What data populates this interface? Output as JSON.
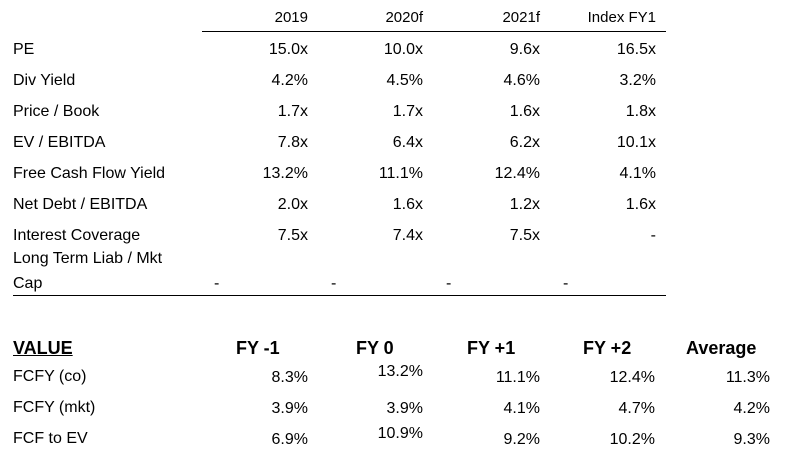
{
  "table1": {
    "headers": [
      "2019",
      "2020f",
      "2021f",
      "Index FY1"
    ],
    "rows": [
      {
        "label": "PE",
        "values": [
          "15.0x",
          "10.0x",
          "9.6x",
          "16.5x"
        ]
      },
      {
        "label": "Div Yield",
        "values": [
          "4.2%",
          "4.5%",
          "4.6%",
          "3.2%"
        ]
      },
      {
        "label": "Price / Book",
        "values": [
          "1.7x",
          "1.7x",
          "1.6x",
          "1.8x"
        ]
      },
      {
        "label": "EV / EBITDA",
        "values": [
          "7.8x",
          "6.4x",
          "6.2x",
          "10.1x"
        ]
      },
      {
        "label": "Free Cash Flow Yield",
        "values": [
          "13.2%",
          "11.1%",
          "12.4%",
          "4.1%"
        ]
      },
      {
        "label": "Net Debt / EBITDA",
        "values": [
          "2.0x",
          "1.6x",
          "1.2x",
          "1.6x"
        ]
      },
      {
        "label": "Interest Coverage",
        "values": [
          "7.5x",
          "7.4x",
          "7.5x",
          "-"
        ]
      }
    ],
    "last_row": {
      "label_line1": "Long Term Liab / Mkt",
      "label_line2": "Cap",
      "values": [
        "-",
        "-",
        "-",
        "-"
      ]
    }
  },
  "table2": {
    "title": "VALUE",
    "headers": [
      "FY -1",
      "FY 0",
      "FY +1",
      "FY +2",
      "Average"
    ],
    "rows": [
      {
        "label": "FCFY (co)",
        "values": [
          "8.3%",
          "13.2%",
          "11.1%",
          "12.4%",
          "11.3%"
        ]
      },
      {
        "label": "FCFY (mkt)",
        "values": [
          "3.9%",
          "3.9%",
          "4.1%",
          "4.7%",
          "4.2%"
        ]
      },
      {
        "label": "FCF to EV",
        "values": [
          "6.9%",
          "10.9%",
          "9.2%",
          "10.2%",
          "9.3%"
        ]
      }
    ]
  }
}
